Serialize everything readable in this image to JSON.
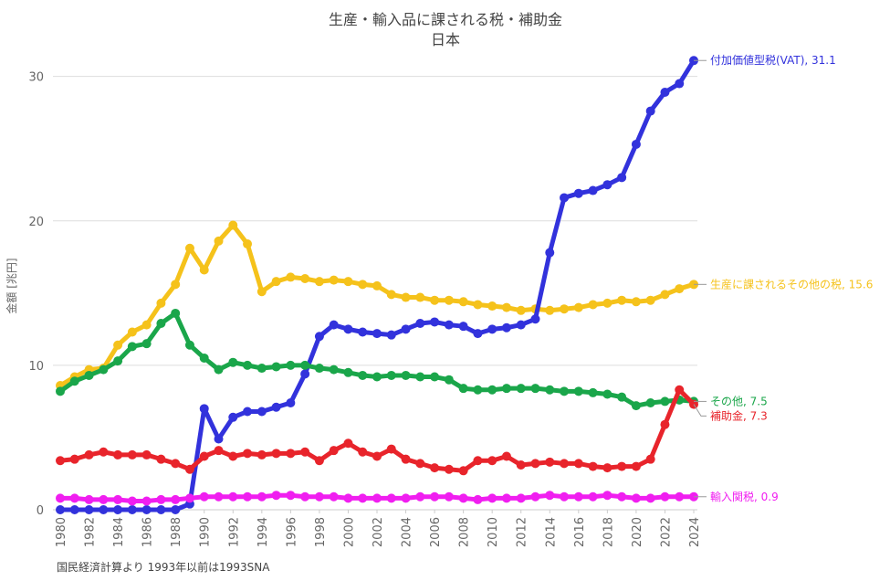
{
  "chart_data": {
    "type": "line",
    "title": "生産・輸入品に課される税・補助金",
    "subtitle": "日本",
    "ylabel": "金額 [兆円]",
    "xlabel": "",
    "source_note": "国民経済計算より 1993年以前は1993SNA",
    "ylim": [
      0,
      32
    ],
    "yticks": [
      0,
      10,
      20,
      30
    ],
    "x": [
      1980,
      1981,
      1982,
      1983,
      1984,
      1985,
      1986,
      1987,
      1988,
      1989,
      1990,
      1991,
      1992,
      1993,
      1994,
      1995,
      1996,
      1997,
      1998,
      1999,
      2000,
      2001,
      2002,
      2003,
      2004,
      2005,
      2006,
      2007,
      2008,
      2009,
      2010,
      2011,
      2012,
      2013,
      2014,
      2015,
      2016,
      2017,
      2018,
      2019,
      2020,
      2021,
      2022,
      2023,
      2024
    ],
    "xticks": [
      "1980",
      "1982",
      "1984",
      "1986",
      "1988",
      "1990",
      "1992",
      "1994",
      "1996",
      "1998",
      "2000",
      "2002",
      "2004",
      "2006",
      "2008",
      "2010",
      "2012",
      "2014",
      "2016",
      "2018",
      "2020",
      "2022",
      "2024"
    ],
    "series": [
      {
        "name": "生産に課されるその他の税",
        "color": "#f5c21b",
        "end_label": "生産に課されるその他の税, 15.6",
        "values": [
          8.6,
          9.2,
          9.7,
          9.8,
          11.4,
          12.3,
          12.8,
          14.3,
          15.6,
          18.1,
          16.6,
          18.6,
          19.7,
          18.4,
          15.1,
          15.8,
          16.1,
          16.0,
          15.8,
          15.9,
          15.8,
          15.6,
          15.5,
          14.9,
          14.7,
          14.7,
          14.5,
          14.5,
          14.4,
          14.2,
          14.1,
          14.0,
          13.8,
          13.9,
          13.8,
          13.9,
          14.0,
          14.2,
          14.3,
          14.5,
          14.4,
          14.5,
          14.9,
          15.3,
          15.6
        ]
      },
      {
        "name": "付加価値型税(VAT)",
        "color": "#3232dc",
        "end_label": "付加価値型税(VAT), 31.1",
        "values": [
          0,
          0,
          0,
          0,
          0,
          0,
          0,
          0,
          0,
          0.4,
          7.0,
          4.9,
          6.4,
          6.8,
          6.8,
          7.1,
          7.4,
          9.4,
          12.0,
          12.8,
          12.5,
          12.3,
          12.2,
          12.1,
          12.5,
          12.9,
          13.0,
          12.8,
          12.7,
          12.2,
          12.5,
          12.6,
          12.8,
          13.2,
          17.8,
          21.6,
          21.9,
          22.1,
          22.5,
          23.0,
          25.3,
          27.6,
          28.9,
          29.5,
          31.1
        ]
      },
      {
        "name": "その他",
        "color": "#1aa64a",
        "end_label": "その他, 7.5",
        "values": [
          8.2,
          8.9,
          9.3,
          9.7,
          10.3,
          11.3,
          11.5,
          12.9,
          13.6,
          11.4,
          10.5,
          9.7,
          10.2,
          10.0,
          9.8,
          9.9,
          10.0,
          10.0,
          9.8,
          9.7,
          9.5,
          9.3,
          9.2,
          9.3,
          9.3,
          9.2,
          9.2,
          9.0,
          8.4,
          8.3,
          8.3,
          8.4,
          8.4,
          8.4,
          8.3,
          8.2,
          8.2,
          8.1,
          8.0,
          7.8,
          7.2,
          7.4,
          7.5,
          7.6,
          7.5
        ]
      },
      {
        "name": "補助金",
        "color": "#e8242b",
        "end_label": "補助金, 7.3",
        "values": [
          3.4,
          3.5,
          3.8,
          4.0,
          3.8,
          3.8,
          3.8,
          3.5,
          3.2,
          2.8,
          3.7,
          4.1,
          3.7,
          3.9,
          3.8,
          3.9,
          3.9,
          4.0,
          3.4,
          4.1,
          4.6,
          4.0,
          3.7,
          4.2,
          3.5,
          3.2,
          2.9,
          2.8,
          2.7,
          3.4,
          3.4,
          3.7,
          3.1,
          3.2,
          3.3,
          3.2,
          3.2,
          3.0,
          2.9,
          3.0,
          3.0,
          3.5,
          5.9,
          8.3,
          7.3
        ]
      },
      {
        "name": "輸入関税",
        "color": "#f01ef0",
        "end_label": "輸入関税, 0.9",
        "values": [
          0.8,
          0.8,
          0.7,
          0.7,
          0.7,
          0.6,
          0.6,
          0.7,
          0.7,
          0.8,
          0.9,
          0.9,
          0.9,
          0.9,
          0.9,
          1.0,
          1.0,
          0.9,
          0.9,
          0.9,
          0.8,
          0.8,
          0.8,
          0.8,
          0.8,
          0.9,
          0.9,
          0.9,
          0.8,
          0.7,
          0.8,
          0.8,
          0.8,
          0.9,
          1.0,
          0.9,
          0.9,
          0.9,
          1.0,
          0.9,
          0.8,
          0.8,
          0.9,
          0.9,
          0.9
        ]
      }
    ]
  }
}
